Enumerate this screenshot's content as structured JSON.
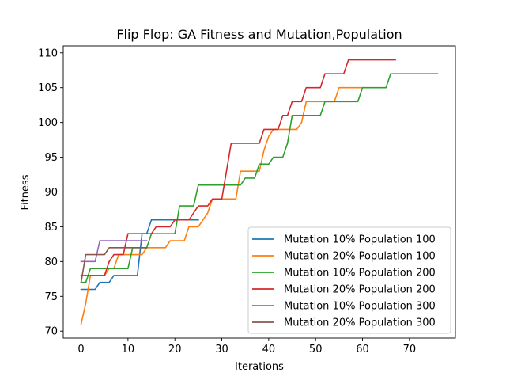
{
  "chart_data": {
    "type": "line",
    "title": "Flip Flop: GA Fitness and Mutation,Population",
    "xlabel": "Iterations",
    "ylabel": "Fitness",
    "xlim": [
      -3.8,
      79.8
    ],
    "ylim": [
      69.0,
      111.0
    ],
    "xticks": [
      0,
      10,
      20,
      30,
      40,
      50,
      60,
      70
    ],
    "yticks": [
      70,
      75,
      80,
      85,
      90,
      95,
      100,
      105,
      110
    ],
    "grid": false,
    "legend_position": "lower right",
    "series": [
      {
        "name": "Mutation 10% Population 100",
        "color": "#1f77b4",
        "x": [
          0,
          1,
          2,
          3,
          4,
          5,
          6,
          7,
          8,
          9,
          10,
          11,
          12,
          13,
          14,
          15,
          16,
          17,
          18,
          19,
          20,
          21,
          22,
          23,
          24,
          25
        ],
        "y": [
          76,
          76,
          76,
          76,
          77,
          77,
          77,
          78,
          78,
          78,
          78,
          78,
          78,
          84,
          84,
          86,
          86,
          86,
          86,
          86,
          86,
          86,
          86,
          86,
          86,
          86
        ]
      },
      {
        "name": "Mutation 20% Population 100",
        "color": "#ff7f0e",
        "x": [
          0,
          1,
          2,
          3,
          4,
          5,
          6,
          7,
          8,
          9,
          10,
          11,
          12,
          13,
          14,
          15,
          16,
          17,
          18,
          19,
          20,
          21,
          22,
          23,
          24,
          25,
          26,
          27,
          28,
          29,
          30,
          31,
          32,
          33,
          34,
          35,
          36,
          37,
          38,
          39,
          40,
          41,
          42,
          43,
          44,
          45,
          46,
          47,
          48,
          49,
          50,
          51,
          52,
          53,
          54,
          55,
          56,
          57,
          58,
          59,
          60
        ],
        "y": [
          71,
          74,
          78,
          78,
          78,
          78,
          79,
          79,
          81,
          81,
          81,
          81,
          81,
          81,
          82,
          82,
          82,
          82,
          82,
          83,
          83,
          83,
          83,
          85,
          85,
          85,
          86,
          87,
          89,
          89,
          89,
          89,
          89,
          89,
          93,
          93,
          93,
          93,
          93,
          96,
          98,
          99,
          99,
          99,
          99,
          99,
          99,
          100,
          103,
          103,
          103,
          103,
          103,
          103,
          103,
          105,
          105,
          105,
          105,
          105,
          105
        ]
      },
      {
        "name": "Mutation 10% Population 200",
        "color": "#2ca02c",
        "x": [
          0,
          1,
          2,
          3,
          4,
          5,
          6,
          7,
          8,
          9,
          10,
          11,
          12,
          13,
          14,
          15,
          16,
          17,
          18,
          19,
          20,
          21,
          22,
          23,
          24,
          25,
          26,
          27,
          28,
          29,
          30,
          31,
          32,
          33,
          34,
          35,
          36,
          37,
          38,
          39,
          40,
          41,
          42,
          43,
          44,
          45,
          46,
          47,
          48,
          49,
          50,
          51,
          52,
          53,
          54,
          55,
          56,
          57,
          58,
          59,
          60,
          61,
          62,
          63,
          64,
          65,
          66,
          67,
          68,
          69,
          70,
          71,
          72,
          73,
          74,
          75,
          76
        ],
        "y": [
          77,
          77,
          79,
          79,
          79,
          79,
          79,
          79,
          79,
          79,
          79,
          82,
          82,
          82,
          82,
          84,
          84,
          84,
          84,
          84,
          84,
          88,
          88,
          88,
          88,
          91,
          91,
          91,
          91,
          91,
          91,
          91,
          91,
          91,
          91,
          92,
          92,
          92,
          94,
          94,
          94,
          95,
          95,
          95,
          97,
          101,
          101,
          101,
          101,
          101,
          101,
          101,
          103,
          103,
          103,
          103,
          103,
          103,
          103,
          103,
          105,
          105,
          105,
          105,
          105,
          105,
          107,
          107,
          107,
          107,
          107,
          107,
          107,
          107,
          107,
          107,
          107
        ]
      },
      {
        "name": "Mutation 20% Population 200",
        "color": "#d62728",
        "x": [
          0,
          1,
          2,
          3,
          4,
          5,
          6,
          7,
          8,
          9,
          10,
          11,
          12,
          13,
          14,
          15,
          16,
          17,
          18,
          19,
          20,
          21,
          22,
          23,
          24,
          25,
          26,
          27,
          28,
          29,
          30,
          31,
          32,
          33,
          34,
          35,
          36,
          37,
          38,
          39,
          40,
          41,
          42,
          43,
          44,
          45,
          46,
          47,
          48,
          49,
          50,
          51,
          52,
          53,
          54,
          55,
          56,
          57,
          58,
          59,
          60,
          61,
          62,
          63,
          64,
          65,
          66,
          67
        ],
        "y": [
          78,
          78,
          78,
          78,
          78,
          78,
          80,
          81,
          81,
          81,
          84,
          84,
          84,
          84,
          84,
          84,
          85,
          85,
          85,
          85,
          86,
          86,
          86,
          86,
          87,
          88,
          88,
          88,
          89,
          89,
          89,
          93,
          97,
          97,
          97,
          97,
          97,
          97,
          97,
          99,
          99,
          99,
          99,
          101,
          101,
          103,
          103,
          103,
          105,
          105,
          105,
          105,
          107,
          107,
          107,
          107,
          107,
          109,
          109,
          109,
          109,
          109,
          109,
          109,
          109,
          109,
          109,
          109
        ]
      },
      {
        "name": "Mutation 10% Population 300",
        "color": "#9467bd",
        "x": [
          0,
          1,
          2,
          3,
          4,
          5,
          6,
          7,
          8,
          9,
          10,
          11,
          12,
          13,
          14
        ],
        "y": [
          80,
          80,
          80,
          80,
          83,
          83,
          83,
          83,
          83,
          83,
          83,
          83,
          83,
          83,
          83
        ]
      },
      {
        "name": "Mutation 20% Population 300",
        "color": "#8c564b",
        "x": [
          0,
          1,
          2,
          3,
          4,
          5,
          6,
          7,
          8,
          9,
          10,
          11,
          12,
          13,
          14
        ],
        "y": [
          77,
          81,
          81,
          81,
          81,
          81,
          82,
          82,
          82,
          82,
          82,
          82,
          82,
          82,
          82
        ]
      }
    ]
  }
}
